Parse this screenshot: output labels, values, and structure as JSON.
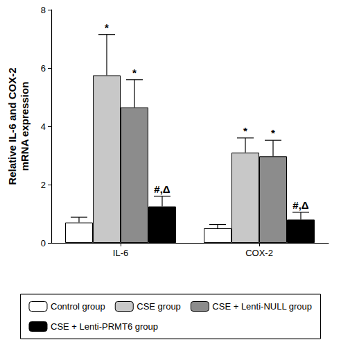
{
  "chart_data": {
    "type": "bar",
    "y_label": "Relative IL-6 and COX-2\nmRNA expression",
    "categories": [
      "IL-6",
      "COX-2"
    ],
    "series": [
      {
        "name": "Control group",
        "color": "#ffffff",
        "values": [
          0.7,
          0.5
        ],
        "errors": [
          0.18,
          0.13
        ],
        "annotations": [
          null,
          null
        ]
      },
      {
        "name": "CSE group",
        "color": "#c8c8c8",
        "values": [
          5.75,
          3.1
        ],
        "errors": [
          1.4,
          0.5
        ],
        "annotations": [
          "*",
          "*"
        ]
      },
      {
        "name": "CSE + Lenti-NULL group",
        "color": "#8c8c8c",
        "values": [
          4.65,
          2.97
        ],
        "errors": [
          0.95,
          0.55
        ],
        "annotations": [
          "*",
          "*"
        ]
      },
      {
        "name": "CSE + Lenti-PRMT6 group",
        "color": "#000000",
        "values": [
          1.25,
          0.8
        ],
        "errors": [
          0.35,
          0.25
        ],
        "annotations": [
          "#,Δ",
          "#,Δ"
        ]
      }
    ],
    "ylim": [
      0,
      8
    ],
    "yticks": [
      0,
      2,
      4,
      6,
      8
    ],
    "grid": false,
    "legend": "bottom"
  }
}
